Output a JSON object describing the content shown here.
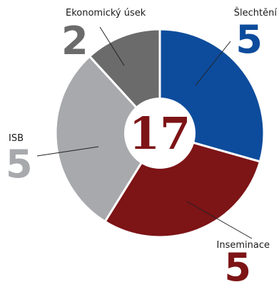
{
  "chart_data": {
    "type": "pie",
    "style": "donut",
    "total": "17",
    "slices": [
      {
        "label": "Šlechtění",
        "value": 5,
        "display": "5",
        "color": "#0d4c9c",
        "value_color": "#0d4c9c"
      },
      {
        "label": "Inseminace",
        "value": 5,
        "display": "5",
        "color": "#7d1416",
        "value_color": "#7d1416"
      },
      {
        "label": "ISB",
        "value": 5,
        "display": "5",
        "color": "#a7a9ac",
        "value_color": "#a7a9ac"
      },
      {
        "label": "Ekonomický úsek",
        "value": 2,
        "display": "2",
        "color": "#6b6b6b",
        "value_color": "#6b6b6b"
      }
    ],
    "total_color": "#7d1416",
    "leader_color": "#222222"
  }
}
